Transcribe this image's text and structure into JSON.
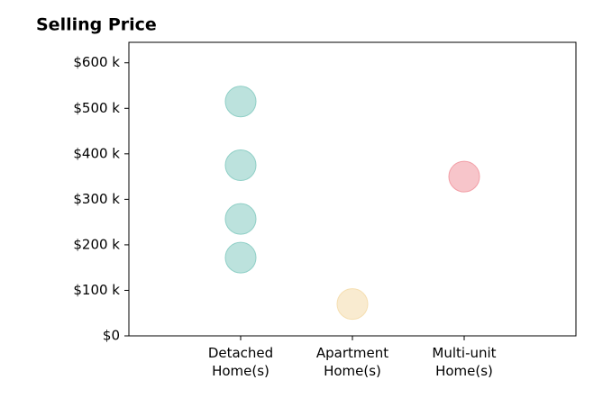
{
  "chart_data": {
    "type": "scatter",
    "title": "Selling Price",
    "categories": [
      [
        "Detached",
        "Home(s)"
      ],
      [
        "Apartment",
        "Home(s)"
      ],
      [
        "Multi-unit",
        "Home(s)"
      ]
    ],
    "values": [
      [
        515000,
        375000,
        257000,
        172000
      ],
      [
        70000
      ],
      [
        350000
      ]
    ],
    "colors": [
      "#8fcfc6",
      "#f5deb0",
      "#f29ea6"
    ],
    "ylim": [
      0,
      645000
    ],
    "yticks": [
      {
        "value": 0,
        "label": "$0"
      },
      {
        "value": 100000,
        "label": "$100 k"
      },
      {
        "value": 200000,
        "label": "$200 k"
      },
      {
        "value": 300000,
        "label": "$300 k"
      },
      {
        "value": 400000,
        "label": "$400 k"
      },
      {
        "value": 500000,
        "label": "$500 k"
      },
      {
        "value": 600000,
        "label": "$600 k"
      }
    ],
    "grid": false
  }
}
